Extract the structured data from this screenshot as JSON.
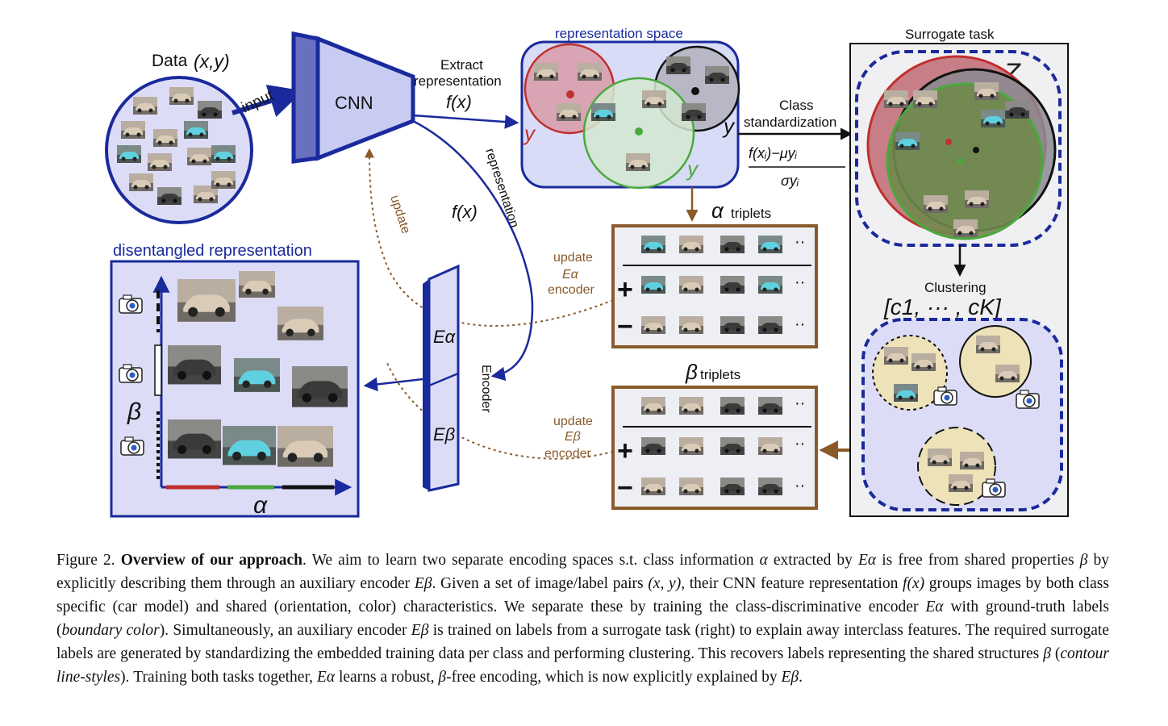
{
  "figure": {
    "data_label": "Data",
    "data_math": "(x,y)",
    "input_label": "input",
    "cnn_label": "CNN",
    "extract_label_1": "Extract",
    "extract_label_2": "representation",
    "fx": "f(x)",
    "representation_space_label": "representation space",
    "y_label": "y",
    "representation_vertical": "representation",
    "update_vertical": "update",
    "class_label": "Class",
    "standardization_label": "standardization",
    "std_numerator": "f(xᵢ)−μyᵢ",
    "std_denominator": "σyᵢ",
    "surrogate_task_label": "Surrogate task",
    "z_label": "Z",
    "alpha_triplets_symbol": "α",
    "beta_triplets_symbol": "β",
    "triplets_label": "triplets",
    "plus": "+",
    "minus": "−",
    "dots": "··",
    "update_label": "update",
    "encoder_label": "encoder",
    "e_alpha": "Eα",
    "e_beta": "Eβ",
    "encoder_vertical": "Encoder",
    "clustering_label": "Clustering",
    "clusters_math": "[c1, ··· , cK]",
    "disentangled_label": "disentangled representation",
    "alpha_axis": "α",
    "beta_axis": "β",
    "colors": {
      "navy": "#1a2a9c",
      "brown": "#8a5a2b",
      "red": "#c0302f",
      "green": "#4aa83f",
      "panel_fill": "#d8dcf6",
      "surrogate_bg": "#f0f0f2"
    }
  },
  "caption": {
    "figure_number": "Figure 2.",
    "bold_title": "Overview of our approach",
    "t1": ". We aim to learn two separate encoding spaces s.t. class information ",
    "m_alpha": "α",
    "t2": " extracted by ",
    "m_ealpha": "Eα",
    "t3": " is free from shared properties ",
    "m_beta": "β",
    "t4": " by explicitly describing them through an auxiliary encoder ",
    "m_ebeta": "Eβ",
    "t5": ". Given a set of image/label pairs ",
    "m_xy": "(x, y)",
    "t6": ", their CNN feature representation ",
    "m_fx": "f(x)",
    "t7": " groups images by both class specific (car model) and shared (orientation, color) characteristics. We separate these by training the class-discriminative encoder ",
    "m_ealpha2": "Eα",
    "t8": " with ground-truth labels (",
    "i_boundary": "boundary color",
    "t9": "). Simultaneously, an auxiliary encoder ",
    "m_ebeta2": "Eβ",
    "t10": " is trained on labels from a surrogate task (right) to explain away interclass features. The required surrogate labels are generated by standardizing the embedded training data per class and performing clustering. This recovers labels representing the shared structures ",
    "m_beta2": "β",
    "t11": " (",
    "i_contour": "contour line-styles",
    "t12": "). Training both tasks together, ",
    "m_ealpha3": "Eα",
    "t13": " learns a robust, ",
    "m_beta3": "β",
    "t14": "-free encoding, which is now explicitly explained by ",
    "m_ebeta3": "Eβ",
    "t15": "."
  }
}
